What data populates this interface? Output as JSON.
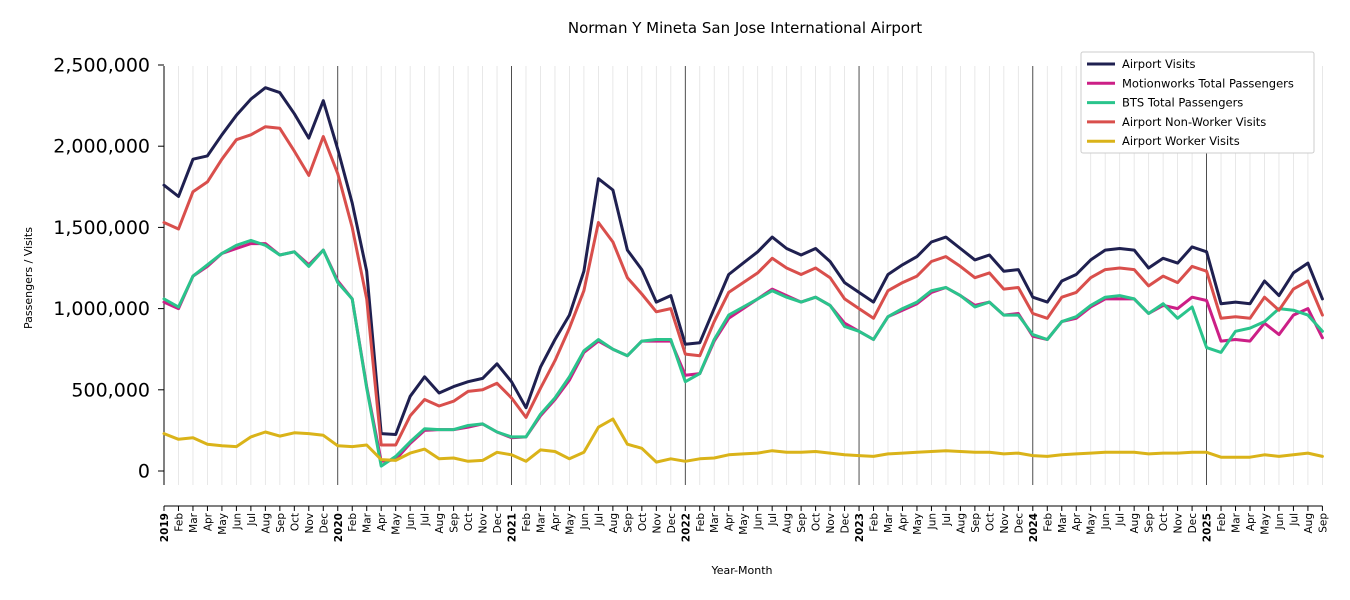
{
  "chart_data": {
    "type": "line",
    "title": "Norman Y Mineta San Jose International Airport",
    "xlabel": "Year-Month",
    "ylabel": "Passengers / Visits",
    "ylim": [
      -75000,
      2530000
    ],
    "yticks": [
      0,
      500000,
      1000000,
      1500000,
      2000000,
      2500000
    ],
    "ytick_labels": [
      "0",
      "500,000",
      "1,000,000",
      "1,500,000",
      "2,000,000",
      "2,500,000"
    ],
    "x": [
      "2019",
      "Feb",
      "Mar",
      "Apr",
      "May",
      "Jun",
      "Jul",
      "Aug",
      "Sep",
      "Oct",
      "Nov",
      "Dec",
      "2020",
      "Feb",
      "Mar",
      "Apr",
      "May",
      "Jun",
      "Jul",
      "Aug",
      "Sep",
      "Oct",
      "Nov",
      "Dec",
      "2021",
      "Feb",
      "Mar",
      "Apr",
      "May",
      "Jun",
      "Jul",
      "Aug",
      "Sep",
      "Oct",
      "Nov",
      "Dec",
      "2022",
      "Feb",
      "Mar",
      "Apr",
      "May",
      "Jun",
      "Jul",
      "Aug",
      "Sep",
      "Oct",
      "Nov",
      "Dec",
      "2023",
      "Feb",
      "Mar",
      "Apr",
      "May",
      "Jun",
      "Jul",
      "Aug",
      "Sep",
      "Oct",
      "Nov",
      "Dec",
      "2024",
      "Feb",
      "Mar",
      "Apr",
      "May",
      "Jun",
      "Jul",
      "Aug",
      "Sep",
      "Oct",
      "Nov",
      "Dec",
      "2025",
      "Feb",
      "Mar",
      "Apr",
      "May",
      "Jun",
      "Jul",
      "Aug",
      "Sep"
    ],
    "year_labels": [
      "2019",
      "2020",
      "2021",
      "2022",
      "2023",
      "2024",
      "2025"
    ],
    "grid": "vertical minor gridlines at each month; dark vertical lines at each January",
    "legend_position": "top-right",
    "series": [
      {
        "name": "Airport Visits",
        "color": "#1f2050",
        "values": [
          1760000,
          1690000,
          1920000,
          1940000,
          2070000,
          2190000,
          2290000,
          2360000,
          2330000,
          2200000,
          2050000,
          2280000,
          1980000,
          1650000,
          1230000,
          230000,
          225000,
          460000,
          580000,
          480000,
          520000,
          550000,
          570000,
          660000,
          550000,
          390000,
          640000,
          810000,
          960000,
          1230000,
          1800000,
          1730000,
          1360000,
          1240000,
          1040000,
          1080000,
          780000,
          790000,
          1000000,
          1210000,
          1280000,
          1350000,
          1440000,
          1370000,
          1330000,
          1370000,
          1290000,
          1160000,
          1100000,
          1040000,
          1210000,
          1270000,
          1320000,
          1410000,
          1440000,
          1370000,
          1300000,
          1330000,
          1230000,
          1240000,
          1070000,
          1040000,
          1170000,
          1210000,
          1300000,
          1360000,
          1370000,
          1360000,
          1250000,
          1310000,
          1280000,
          1380000,
          1350000,
          1030000,
          1040000,
          1030000,
          1170000,
          1080000,
          1220000,
          1280000,
          1060000
        ]
      },
      {
        "name": "Motionworks Total Passengers",
        "color": "#cc1f86",
        "values": [
          1040000,
          1000000,
          1200000,
          1260000,
          1340000,
          1370000,
          1400000,
          1400000,
          1330000,
          1350000,
          1270000,
          1360000,
          1170000,
          1060000,
          520000,
          60000,
          70000,
          170000,
          250000,
          255000,
          255000,
          270000,
          290000,
          240000,
          205000,
          210000,
          340000,
          440000,
          560000,
          730000,
          800000,
          750000,
          710000,
          800000,
          800000,
          800000,
          590000,
          600000,
          800000,
          940000,
          1000000,
          1060000,
          1120000,
          1080000,
          1040000,
          1070000,
          1020000,
          910000,
          860000,
          810000,
          950000,
          990000,
          1030000,
          1100000,
          1130000,
          1080000,
          1020000,
          1040000,
          960000,
          970000,
          830000,
          810000,
          920000,
          940000,
          1010000,
          1060000,
          1060000,
          1060000,
          970000,
          1020000,
          1000000,
          1070000,
          1050000,
          800000,
          810000,
          800000,
          910000,
          840000,
          960000,
          1000000,
          820000
        ]
      },
      {
        "name": "BTS Total Passengers",
        "color": "#2ac48c",
        "values": [
          1060000,
          1010000,
          1200000,
          1270000,
          1340000,
          1390000,
          1420000,
          1390000,
          1330000,
          1350000,
          1260000,
          1360000,
          1160000,
          1060000,
          510000,
          30000,
          90000,
          180000,
          260000,
          255000,
          255000,
          280000,
          290000,
          240000,
          210000,
          210000,
          350000,
          450000,
          580000,
          740000,
          810000,
          750000,
          710000,
          800000,
          810000,
          810000,
          550000,
          600000,
          810000,
          960000,
          1010000,
          1060000,
          1110000,
          1070000,
          1040000,
          1070000,
          1020000,
          890000,
          860000,
          810000,
          950000,
          1000000,
          1040000,
          1110000,
          1130000,
          1080000,
          1010000,
          1040000,
          960000,
          960000,
          840000,
          810000,
          920000,
          950000,
          1020000,
          1070000,
          1080000,
          1060000,
          970000,
          1030000,
          940000,
          1010000,
          760000,
          730000,
          860000,
          880000,
          920000,
          1000000,
          990000,
          960000,
          860000
        ]
      },
      {
        "name": "Airport Non-Worker Visits",
        "color": "#d94f4c",
        "values": [
          1530000,
          1490000,
          1720000,
          1780000,
          1920000,
          2040000,
          2070000,
          2120000,
          2110000,
          1970000,
          1820000,
          2060000,
          1830000,
          1500000,
          1060000,
          160000,
          160000,
          340000,
          440000,
          400000,
          430000,
          490000,
          500000,
          540000,
          450000,
          330000,
          510000,
          680000,
          880000,
          1110000,
          1530000,
          1410000,
          1190000,
          1090000,
          980000,
          1000000,
          720000,
          710000,
          920000,
          1100000,
          1160000,
          1220000,
          1310000,
          1250000,
          1210000,
          1250000,
          1190000,
          1060000,
          1000000,
          940000,
          1110000,
          1160000,
          1200000,
          1290000,
          1320000,
          1260000,
          1190000,
          1220000,
          1120000,
          1130000,
          970000,
          940000,
          1070000,
          1100000,
          1190000,
          1240000,
          1250000,
          1240000,
          1140000,
          1200000,
          1160000,
          1260000,
          1230000,
          940000,
          950000,
          940000,
          1070000,
          990000,
          1120000,
          1170000,
          960000
        ]
      },
      {
        "name": "Airport Worker Visits",
        "color": "#dab319",
        "values": [
          230000,
          195000,
          205000,
          165000,
          155000,
          150000,
          210000,
          240000,
          215000,
          235000,
          230000,
          220000,
          155000,
          150000,
          160000,
          70000,
          65000,
          110000,
          135000,
          75000,
          80000,
          60000,
          65000,
          115000,
          100000,
          60000,
          130000,
          120000,
          75000,
          115000,
          270000,
          320000,
          165000,
          140000,
          55000,
          75000,
          60000,
          75000,
          80000,
          100000,
          105000,
          110000,
          125000,
          115000,
          115000,
          120000,
          110000,
          100000,
          95000,
          90000,
          105000,
          110000,
          115000,
          120000,
          125000,
          120000,
          115000,
          115000,
          105000,
          110000,
          95000,
          90000,
          100000,
          105000,
          110000,
          115000,
          115000,
          115000,
          105000,
          110000,
          110000,
          115000,
          115000,
          85000,
          85000,
          85000,
          100000,
          90000,
          100000,
          110000,
          90000
        ]
      }
    ]
  }
}
